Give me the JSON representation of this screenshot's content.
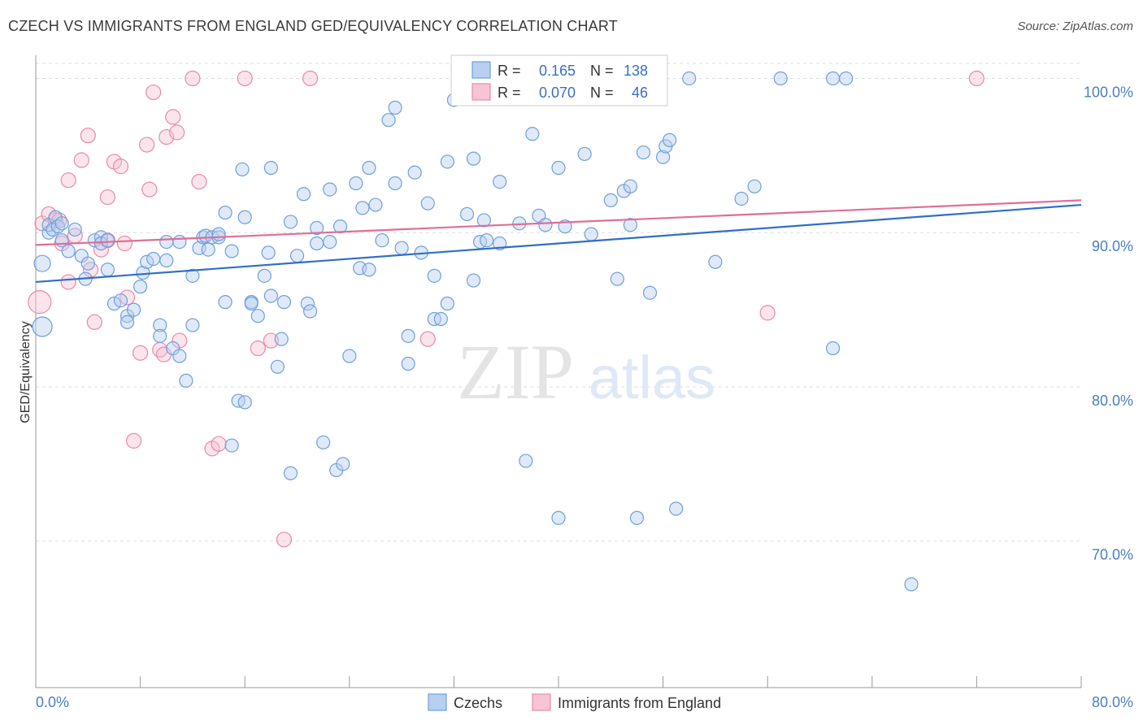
{
  "title": "CZECH VS IMMIGRANTS FROM ENGLAND GED/EQUIVALENCY CORRELATION CHART",
  "source": "Source: ZipAtlas.com",
  "watermark": {
    "zip": "ZIP",
    "atlas": "atlas"
  },
  "colors": {
    "blue": "#6f9fdc",
    "blue_fill": "#b7cff0",
    "blue_line": "#2f6fc8",
    "pink": "#e88aaa",
    "pink_fill": "#f6c4d4",
    "pink_line": "#e06e95",
    "tick_text": "#4a7fc1",
    "grid": "#dddddd"
  },
  "stats": {
    "r_label": "R =",
    "n_label": "N =",
    "rows": [
      {
        "r": "0.165",
        "n": "138"
      },
      {
        "r": "0.070",
        "n": "46"
      }
    ]
  },
  "chart_data": {
    "type": "scatter",
    "ylabel": "GED/Equivalency",
    "xlim": [
      0,
      80
    ],
    "ylim": [
      60.5,
      101.5
    ],
    "x_tick_labels": [
      "0.0%",
      "80.0%"
    ],
    "y_ticks": [
      {
        "value": 100,
        "label": "100.0%"
      },
      {
        "value": 90,
        "label": "90.0%"
      },
      {
        "value": 80,
        "label": "80.0%"
      },
      {
        "value": 70,
        "label": "70.0%"
      }
    ],
    "series": [
      {
        "name": "Czechs",
        "trend": [
          [
            0,
            86.8
          ],
          [
            80,
            91.8
          ]
        ],
        "points": [
          [
            0.5,
            83.9,
            12
          ],
          [
            0.5,
            88,
            10
          ],
          [
            1,
            90,
            8
          ],
          [
            1,
            90.5,
            8
          ],
          [
            1.3,
            90.2,
            8
          ],
          [
            1.5,
            91,
            8
          ],
          [
            1.7,
            90.4,
            8
          ],
          [
            2,
            90.6,
            8
          ],
          [
            2,
            89.5,
            8
          ],
          [
            2.5,
            88.8,
            8
          ],
          [
            3,
            90.2,
            8
          ],
          [
            3.5,
            88.5,
            8
          ],
          [
            3.8,
            87,
            8
          ],
          [
            4,
            88,
            8
          ],
          [
            4.5,
            89.5,
            8
          ],
          [
            5,
            89.7,
            8
          ],
          [
            5,
            89.3,
            8
          ],
          [
            5.5,
            89.5,
            8
          ],
          [
            5.5,
            87.6,
            8
          ],
          [
            6,
            85.4,
            8
          ],
          [
            6.5,
            85.6,
            8
          ],
          [
            7,
            84.6,
            8
          ],
          [
            7,
            84.2,
            8
          ],
          [
            7.5,
            85,
            8
          ],
          [
            8,
            86.5,
            8
          ],
          [
            8.2,
            87.4,
            8
          ],
          [
            8.5,
            88.1,
            8
          ],
          [
            9,
            88.3,
            8
          ],
          [
            9.5,
            84,
            8
          ],
          [
            9.5,
            83.3,
            8
          ],
          [
            10,
            89.4,
            8
          ],
          [
            10,
            88.2,
            8
          ],
          [
            10.5,
            82.5,
            8
          ],
          [
            11,
            89.4,
            8
          ],
          [
            11,
            82,
            8
          ],
          [
            11.5,
            80.4,
            8
          ],
          [
            12,
            87.2,
            8
          ],
          [
            12,
            84,
            8
          ],
          [
            12.5,
            89,
            8
          ],
          [
            12.8,
            89.7,
            8
          ],
          [
            13,
            89.8,
            8
          ],
          [
            13.2,
            88.9,
            8
          ],
          [
            13.5,
            89.7,
            8
          ],
          [
            14,
            89.7,
            8
          ],
          [
            14,
            89.9,
            8
          ],
          [
            14.5,
            85.5,
            8
          ],
          [
            14.5,
            91.3,
            8
          ],
          [
            15,
            88.8,
            8
          ],
          [
            15,
            76.2,
            8
          ],
          [
            15.5,
            79.1,
            8
          ],
          [
            15.8,
            94.1,
            8
          ],
          [
            16,
            79,
            8
          ],
          [
            16,
            91,
            8
          ],
          [
            16.5,
            85.5,
            8
          ],
          [
            16.5,
            85.4,
            8
          ],
          [
            17,
            84.6,
            8
          ],
          [
            17.5,
            87.2,
            8
          ],
          [
            17.8,
            88.7,
            8
          ],
          [
            18,
            94.2,
            8
          ],
          [
            18,
            85.9,
            8
          ],
          [
            18.5,
            81.3,
            8
          ],
          [
            18.8,
            83.1,
            8
          ],
          [
            19,
            85.5,
            8
          ],
          [
            19.5,
            90.7,
            8
          ],
          [
            19.5,
            74.4,
            8
          ],
          [
            20,
            88.5,
            8
          ],
          [
            20.5,
            92.5,
            8
          ],
          [
            20.8,
            85.4,
            8
          ],
          [
            21,
            84.9,
            8
          ],
          [
            21.5,
            90.3,
            8
          ],
          [
            21.5,
            89.3,
            8
          ],
          [
            22,
            76.4,
            8
          ],
          [
            22.5,
            89.4,
            8
          ],
          [
            22.5,
            92.8,
            8
          ],
          [
            23,
            74.6,
            8
          ],
          [
            23.3,
            90.4,
            8
          ],
          [
            23.5,
            75,
            8
          ],
          [
            24,
            82,
            8
          ],
          [
            24.5,
            93.2,
            8
          ],
          [
            24.8,
            87.7,
            8
          ],
          [
            25,
            91.6,
            8
          ],
          [
            25.5,
            87.6,
            8
          ],
          [
            25.5,
            94.2,
            8
          ],
          [
            26,
            91.8,
            8
          ],
          [
            26.5,
            89.5,
            8
          ],
          [
            27,
            97.3,
            8
          ],
          [
            27.5,
            98.1,
            8
          ],
          [
            27.5,
            93.2,
            8
          ],
          [
            28,
            89,
            8
          ],
          [
            28.5,
            83.3,
            8
          ],
          [
            28.5,
            81.5,
            8
          ],
          [
            29,
            93.9,
            8
          ],
          [
            29.5,
            88.7,
            8
          ],
          [
            30,
            91.9,
            8
          ],
          [
            30.5,
            87.2,
            8
          ],
          [
            30.5,
            84.4,
            8
          ],
          [
            31,
            84.4,
            8
          ],
          [
            31.5,
            85.4,
            8
          ],
          [
            31.5,
            94.6,
            8
          ],
          [
            32,
            98.6,
            8
          ],
          [
            33,
            91.2,
            8
          ],
          [
            33.5,
            94.8,
            8
          ],
          [
            33.5,
            86.9,
            8
          ],
          [
            34,
            89.4,
            8
          ],
          [
            34.3,
            90.8,
            8
          ],
          [
            34.5,
            89.5,
            8
          ],
          [
            35,
            100,
            8
          ],
          [
            35.5,
            93.3,
            8
          ],
          [
            35.5,
            89.3,
            8
          ],
          [
            37,
            90.6,
            8
          ],
          [
            37.5,
            75.2,
            8
          ],
          [
            38,
            96.4,
            8
          ],
          [
            38.5,
            91.1,
            8
          ],
          [
            39,
            90.5,
            8
          ],
          [
            40,
            71.5,
            8
          ],
          [
            40,
            94.2,
            8
          ],
          [
            40.5,
            90.4,
            8
          ],
          [
            42,
            95.1,
            8
          ],
          [
            42.5,
            89.9,
            8
          ],
          [
            44,
            92.1,
            8
          ],
          [
            44.5,
            87,
            8
          ],
          [
            45,
            92.7,
            8
          ],
          [
            45.5,
            90.5,
            8
          ],
          [
            45.5,
            93,
            8
          ],
          [
            46,
            71.5,
            8
          ],
          [
            46.5,
            95.2,
            8
          ],
          [
            47,
            86.1,
            8
          ],
          [
            48,
            94.9,
            8
          ],
          [
            48.2,
            95.6,
            8
          ],
          [
            48.5,
            96,
            8
          ],
          [
            49,
            72.1,
            8
          ],
          [
            50,
            100,
            8
          ],
          [
            52,
            88.1,
            8
          ],
          [
            54,
            92.2,
            8
          ],
          [
            55,
            93,
            8
          ],
          [
            57,
            100,
            8
          ],
          [
            61,
            100,
            8
          ],
          [
            62,
            100,
            8
          ],
          [
            61,
            82.5,
            8
          ],
          [
            67,
            67.2,
            8
          ]
        ]
      },
      {
        "name": "Immigrants from England",
        "trend": [
          [
            0,
            89.2
          ],
          [
            80,
            92.1
          ]
        ],
        "points": [
          [
            0.3,
            85.5,
            14
          ],
          [
            0.5,
            90.6,
            9
          ],
          [
            1,
            91.2,
            9
          ],
          [
            1.5,
            90.8,
            9
          ],
          [
            1.8,
            90.8,
            9
          ],
          [
            2,
            89.3,
            9
          ],
          [
            2.5,
            86.8,
            9
          ],
          [
            2.5,
            93.4,
            9
          ],
          [
            3,
            89.8,
            9
          ],
          [
            3.5,
            94.7,
            9
          ],
          [
            4,
            96.3,
            9
          ],
          [
            4.2,
            87.6,
            9
          ],
          [
            4.5,
            84.2,
            9
          ],
          [
            5,
            88.9,
            9
          ],
          [
            5.5,
            92.3,
            9
          ],
          [
            5.5,
            89.5,
            9
          ],
          [
            6,
            94.6,
            9
          ],
          [
            6.5,
            94.3,
            9
          ],
          [
            6.8,
            89.3,
            9
          ],
          [
            7,
            85.8,
            9
          ],
          [
            7.5,
            76.5,
            9
          ],
          [
            8,
            82.2,
            9
          ],
          [
            8.5,
            95.7,
            9
          ],
          [
            8.7,
            92.8,
            9
          ],
          [
            9,
            99.1,
            9
          ],
          [
            9.5,
            82.4,
            9
          ],
          [
            9.8,
            82.1,
            9
          ],
          [
            10,
            96.2,
            9
          ],
          [
            10.5,
            97.5,
            9
          ],
          [
            10.8,
            96.5,
            9
          ],
          [
            11,
            83,
            9
          ],
          [
            12,
            100,
            9
          ],
          [
            12.5,
            93.3,
            9
          ],
          [
            13.5,
            76,
            9
          ],
          [
            14,
            76.3,
            9
          ],
          [
            16,
            100,
            9
          ],
          [
            17,
            82.5,
            9
          ],
          [
            18,
            83,
            9
          ],
          [
            19,
            70.1,
            9
          ],
          [
            21,
            100,
            9
          ],
          [
            30,
            83.1,
            9
          ],
          [
            33,
            100,
            9
          ],
          [
            56,
            84.8,
            9
          ],
          [
            72,
            100,
            9
          ]
        ]
      }
    ],
    "legend_position": "bottom-center"
  }
}
